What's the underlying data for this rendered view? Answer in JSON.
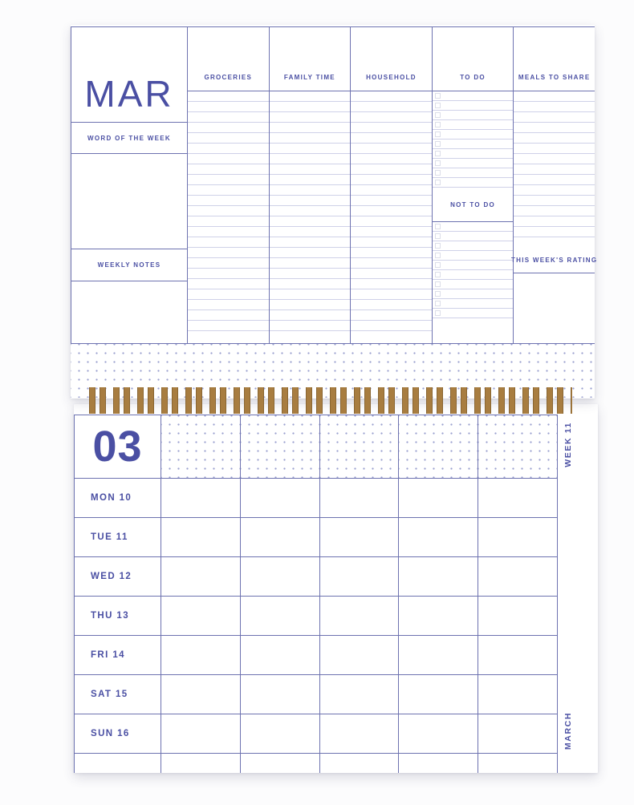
{
  "planner": {
    "top_page": {
      "month_abbr": "MAR",
      "word_of_the_week_label": "WORD OF THE WEEK",
      "weekly_notes_label": "WEEKLY NOTES",
      "columns": [
        {
          "label": "GROCERIES",
          "type": "lined"
        },
        {
          "label": "FAMILY TIME",
          "type": "lined"
        },
        {
          "label": "HOUSEHOLD",
          "type": "lined"
        },
        {
          "label": "TO DO",
          "type": "checklist",
          "sublabel": "NOT TO DO"
        },
        {
          "label": "MEALS TO SHARE",
          "type": "lined",
          "sublabel": "THIS WEEK'S RATING"
        }
      ]
    },
    "bottom_page": {
      "month_number": "03",
      "week_label": "WEEK 11",
      "month_name_vertical": "MARCH",
      "days": [
        "MON 10",
        "TUE 11",
        "WED 12",
        "THU 13",
        "FRI 14",
        "SAT 15",
        "SUN 16"
      ]
    },
    "colors": {
      "ink": "#4a4fa3",
      "grid_line": "#6d72b0",
      "rule_line": "#cfd1e8",
      "checkbox_border": "#dcdee9",
      "dot": "#9aa0cf",
      "binding_gold": "#a87d40"
    }
  }
}
